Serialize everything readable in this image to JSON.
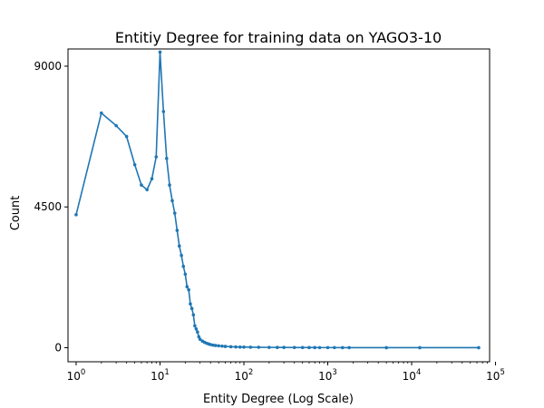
{
  "chart_data": {
    "type": "line",
    "title": "Entitiy Degree for training data on YAGO3-10",
    "xlabel": "Entity Degree (Log Scale)",
    "ylabel": "Count",
    "xscale": "log",
    "xlim": [
      0.8,
      85000
    ],
    "ylim": [
      -450,
      9550
    ],
    "x_ticks": [
      {
        "value": 1,
        "base": "10",
        "exp": "0"
      },
      {
        "value": 10,
        "base": "10",
        "exp": "1"
      },
      {
        "value": 100,
        "base": "10",
        "exp": "2"
      },
      {
        "value": 1000,
        "base": "10",
        "exp": "3"
      },
      {
        "value": 10000,
        "base": "10",
        "exp": "4"
      },
      {
        "value": 100000,
        "base": "10",
        "exp": "5"
      }
    ],
    "y_ticks": [
      {
        "value": 0,
        "label": "0"
      },
      {
        "value": 4500,
        "label": "4500"
      },
      {
        "value": 9000,
        "label": "9000"
      }
    ],
    "grid": false,
    "color": "#1f77b4",
    "series": [
      {
        "x": [
          1,
          2,
          3,
          4,
          5,
          6,
          7,
          8,
          9,
          10,
          11,
          12,
          13,
          14,
          15,
          16,
          17,
          18,
          19,
          20,
          21,
          22,
          23,
          24,
          25,
          26,
          27,
          28,
          29,
          30,
          32,
          34,
          36,
          38,
          40,
          43,
          46,
          50,
          55,
          60,
          70,
          80,
          90,
          100,
          120,
          150,
          200,
          250,
          300,
          400,
          500,
          600,
          700,
          800,
          1000,
          1200,
          1500,
          1800,
          5000,
          12500,
          63000
        ],
        "y": [
          4250,
          7500,
          7100,
          6750,
          5850,
          5200,
          5050,
          5400,
          6100,
          9450,
          7550,
          6050,
          5200,
          4700,
          4300,
          3750,
          3250,
          2950,
          2600,
          2350,
          1950,
          1850,
          1400,
          1250,
          1050,
          700,
          600,
          500,
          350,
          270,
          210,
          170,
          140,
          120,
          100,
          80,
          70,
          60,
          50,
          40,
          30,
          25,
          20,
          18,
          15,
          12,
          10,
          8,
          7,
          6,
          5,
          4,
          4,
          3,
          3,
          3,
          2,
          2,
          1,
          1,
          1
        ]
      }
    ]
  }
}
